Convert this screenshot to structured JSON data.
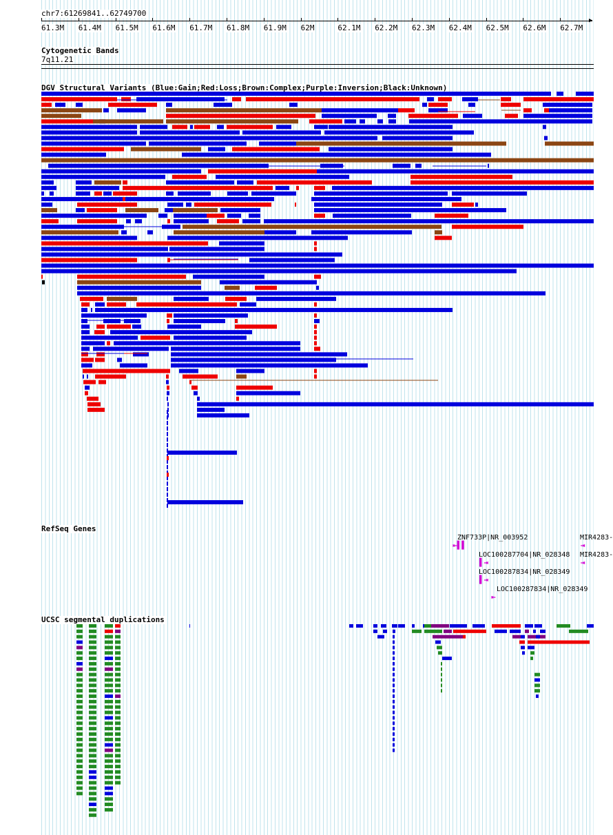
{
  "ruler": {
    "location": "chr7:61269841..62749700",
    "ticks": [
      "61.3M",
      "61.4M",
      "61.5M",
      "61.6M",
      "61.7M",
      "61.8M",
      "61.9M",
      "62M",
      "62.1M",
      "62.2M",
      "62.3M",
      "62.4M",
      "62.5M",
      "62.6M",
      "62.7M"
    ]
  },
  "cytobands": {
    "title": "Cytogenetic Bands",
    "band": "7q11.21"
  },
  "dgv": {
    "title": "DGV Structural Variants (Blue:Gain;Red:Loss;Brown:Complex;Purple:Inversion;Black:Unknown)",
    "colors": {
      "gain": "#0000dd",
      "loss": "#ee0000",
      "complex": "#8b4513",
      "inversion": "#800080",
      "unknown": "#000000"
    }
  },
  "refseq": {
    "title": "RefSeq Genes",
    "genes": [
      {
        "label": "ZNF733P|NR_003952",
        "strand": "-"
      },
      {
        "label": "MIR4283-",
        "strand": "+"
      },
      {
        "label": "LOC100287704|NR_028348",
        "strand": "+"
      },
      {
        "label": "MIR4283-",
        "strand": "+"
      },
      {
        "label": "LOC100287834|NR_028349",
        "strand": "+"
      },
      {
        "label": "LOC100287834|NR_028349",
        "strand": "-"
      }
    ],
    "icon_color": "#d400d4"
  },
  "segdups": {
    "title": "UCSC segmental duplications",
    "colors": {
      "green": "#228b22",
      "blue": "#0000dd",
      "purple": "#800080",
      "red": "#ee0000"
    }
  }
}
